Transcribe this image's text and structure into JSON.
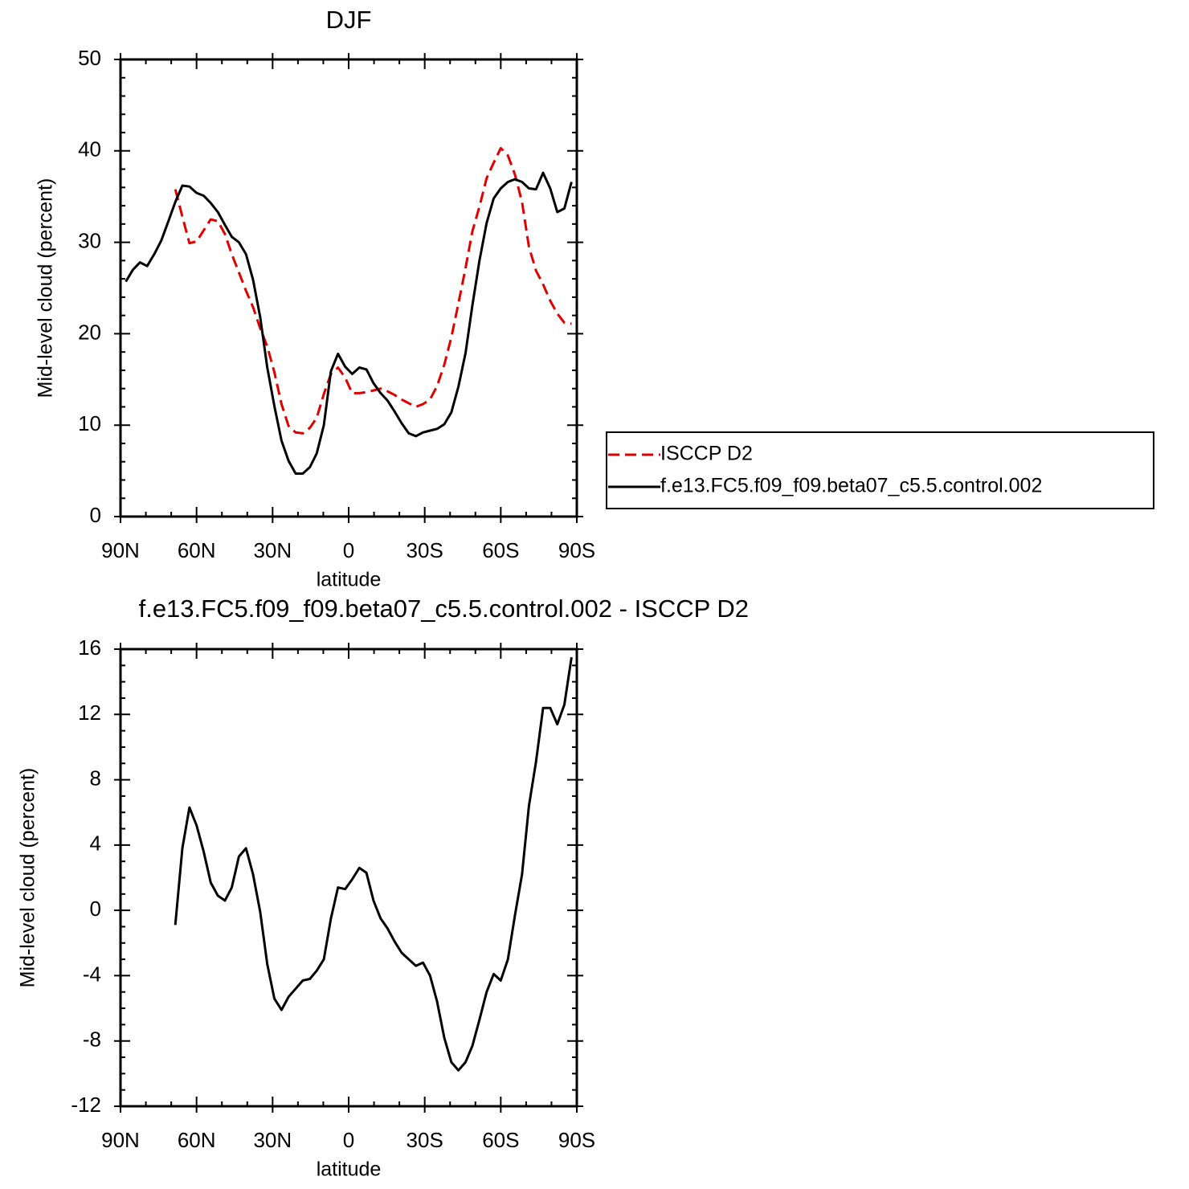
{
  "chart_data": [
    {
      "type": "line",
      "title": "DJF",
      "xlabel": "latitude",
      "ylabel": "Mid-level cloud (percent)",
      "x": [
        87.9,
        85.1,
        82.3,
        79.5,
        76.7,
        73.9,
        71.1,
        68.4,
        65.6,
        62.8,
        60.0,
        57.2,
        54.4,
        51.6,
        48.8,
        46.1,
        43.3,
        40.5,
        37.7,
        34.9,
        32.1,
        29.3,
        26.5,
        23.7,
        20.9,
        18.1,
        15.3,
        12.6,
        9.8,
        7.0,
        4.2,
        1.4,
        -1.4,
        -4.2,
        -7.0,
        -9.8,
        -12.6,
        -15.3,
        -18.1,
        -20.9,
        -23.7,
        -26.5,
        -29.3,
        -32.1,
        -34.9,
        -37.7,
        -40.5,
        -43.3,
        -46.1,
        -48.8,
        -51.6,
        -54.4,
        -57.2,
        -60.0,
        -62.8,
        -65.6,
        -68.4,
        -71.1,
        -73.9,
        -76.7,
        -79.5,
        -82.3,
        -85.1,
        -87.9
      ],
      "series": [
        {
          "name": "ISCCP D2",
          "color": "#e00000",
          "line_style": "dashed",
          "values": [
            null,
            null,
            null,
            null,
            null,
            null,
            null,
            35.8,
            32.8,
            29.9,
            30.1,
            31.3,
            32.5,
            32.3,
            30.9,
            28.7,
            26.7,
            24.7,
            22.9,
            20.6,
            18.6,
            15.8,
            12.3,
            9.9,
            9.2,
            9.1,
            9.7,
            10.8,
            13.4,
            15.6,
            16.3,
            15.2,
            13.5,
            13.5,
            13.6,
            13.8,
            14.0,
            13.7,
            13.3,
            12.8,
            12.4,
            12.0,
            12.3,
            12.8,
            14.3,
            16.6,
            19.6,
            23.3,
            27.2,
            31.2,
            33.9,
            37.0,
            38.7,
            40.3,
            39.5,
            37.4,
            34.4,
            29.5,
            26.9,
            25.4,
            23.6,
            22.2,
            21.2,
            21.1
          ]
        },
        {
          "name": "f.e13.FC5.f09_f09.beta07_c5.5.control.002",
          "color": "#000000",
          "line_style": "solid",
          "values": [
            25.7,
            27.0,
            27.8,
            27.4,
            28.7,
            30.2,
            32.3,
            34.4,
            36.2,
            36.1,
            35.4,
            35.1,
            34.3,
            33.3,
            31.9,
            30.6,
            30.0,
            28.7,
            25.9,
            21.8,
            16.3,
            12.1,
            8.3,
            6.1,
            4.7,
            4.7,
            5.4,
            6.9,
            10.0,
            15.9,
            17.8,
            16.4,
            15.6,
            16.3,
            16.1,
            14.6,
            13.5,
            12.7,
            11.5,
            10.2,
            9.1,
            8.8,
            9.2,
            9.4,
            9.6,
            10.1,
            11.4,
            14.2,
            17.9,
            23.1,
            28.0,
            32.1,
            34.8,
            35.9,
            36.6,
            36.9,
            36.6,
            35.9,
            35.8,
            37.6,
            35.9,
            33.3,
            33.7,
            36.6
          ]
        }
      ],
      "xlim": [
        90,
        -90
      ],
      "xticks": [
        {
          "value": 90,
          "label": "90N"
        },
        {
          "value": 60,
          "label": "60N"
        },
        {
          "value": 30,
          "label": "30N"
        },
        0,
        {
          "value": -30,
          "label": "30S"
        },
        {
          "value": -60,
          "label": "60S"
        },
        {
          "value": -90,
          "label": "90S"
        }
      ],
      "ylim": [
        0,
        50
      ],
      "yticks": [
        0,
        10,
        20,
        30,
        40,
        50
      ],
      "legend": "right"
    },
    {
      "type": "line",
      "title": "f.e13.FC5.f09_f09.beta07_c5.5.control.002 - ISCCP D2",
      "xlabel": "latitude",
      "ylabel": "Mid-level cloud (percent)",
      "x": [
        87.9,
        85.1,
        82.3,
        79.5,
        76.7,
        73.9,
        71.1,
        68.4,
        65.6,
        62.8,
        60.0,
        57.2,
        54.4,
        51.6,
        48.8,
        46.1,
        43.3,
        40.5,
        37.7,
        34.9,
        32.1,
        29.3,
        26.5,
        23.7,
        20.9,
        18.1,
        15.3,
        12.6,
        9.8,
        7.0,
        4.2,
        1.4,
        -1.4,
        -4.2,
        -7.0,
        -9.8,
        -12.6,
        -15.3,
        -18.1,
        -20.9,
        -23.7,
        -26.5,
        -29.3,
        -32.1,
        -34.9,
        -37.7,
        -40.5,
        -43.3,
        -46.1,
        -48.8,
        -51.6,
        -54.4,
        -57.2,
        -60.0,
        -62.8,
        -65.6,
        -68.4,
        -71.1,
        -73.9,
        -76.7,
        -79.5,
        -82.3,
        -85.1,
        -87.9
      ],
      "series": [
        {
          "color": "#000000",
          "line_style": "solid",
          "values": [
            null,
            null,
            null,
            null,
            null,
            null,
            null,
            -0.9,
            3.8,
            6.3,
            5.2,
            3.6,
            1.7,
            0.9,
            0.6,
            1.4,
            3.3,
            3.8,
            2.2,
            -0.1,
            -3.3,
            -5.4,
            -6.1,
            -5.3,
            -4.8,
            -4.3,
            -4.2,
            -3.7,
            -3.0,
            -0.5,
            1.4,
            1.3,
            1.9,
            2.6,
            2.3,
            0.6,
            -0.5,
            -1.1,
            -1.9,
            -2.6,
            -3.0,
            -3.4,
            -3.2,
            -4.0,
            -5.6,
            -7.8,
            -9.3,
            -9.8,
            -9.3,
            -8.3,
            -6.7,
            -5.0,
            -3.9,
            -4.3,
            -3.0,
            -0.3,
            2.2,
            6.4,
            9.1,
            12.4,
            12.4,
            11.4,
            12.6,
            15.5
          ]
        }
      ],
      "xlim": [
        90,
        -90
      ],
      "xticks": [
        {
          "value": 90,
          "label": "90N"
        },
        {
          "value": 60,
          "label": "60N"
        },
        {
          "value": 30,
          "label": "30N"
        },
        0,
        {
          "value": -30,
          "label": "30S"
        },
        {
          "value": -60,
          "label": "60S"
        },
        {
          "value": -90,
          "label": "90S"
        }
      ],
      "ylim": [
        -12,
        16
      ],
      "yticks": [
        -12,
        -8,
        -4,
        0,
        4,
        8,
        12,
        16
      ]
    }
  ]
}
